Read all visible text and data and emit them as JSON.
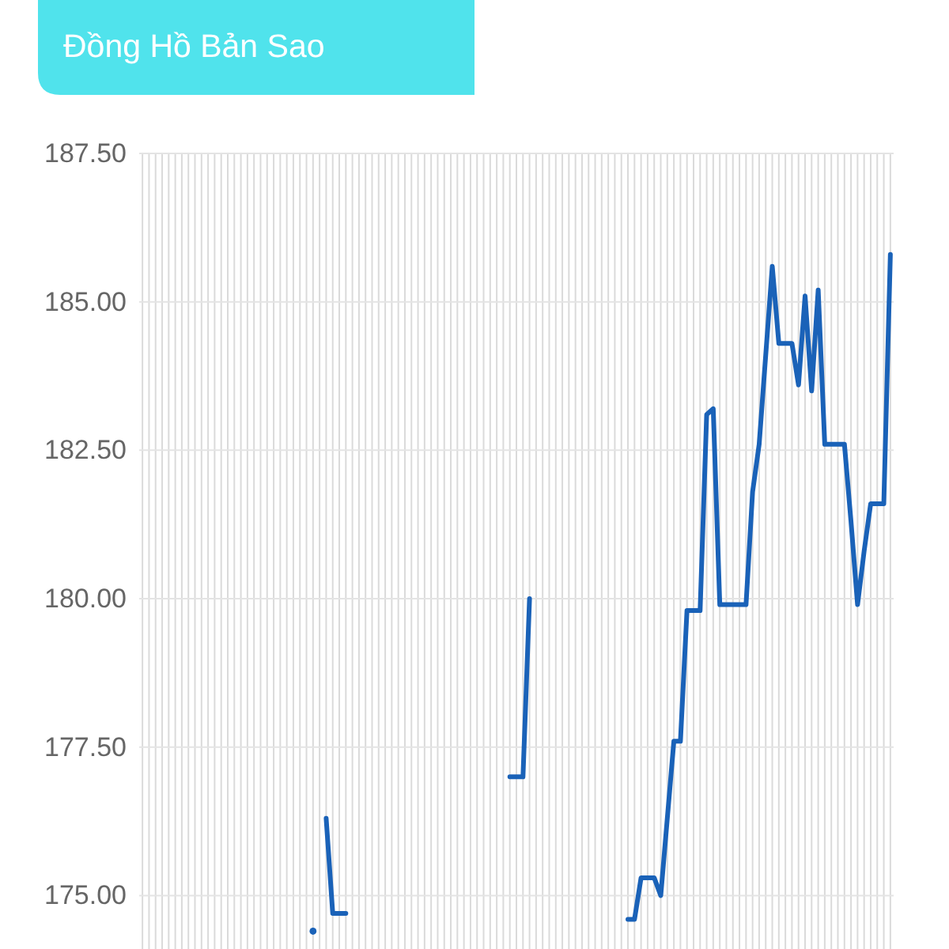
{
  "chart_data": {
    "type": "line",
    "title": "Đồng Hồ Bản Sao",
    "categories": [
      null,
      null,
      null,
      null,
      null,
      null,
      null,
      null,
      null,
      null,
      null,
      null,
      null,
      null,
      null,
      null,
      null,
      null,
      null,
      null,
      null,
      null,
      null,
      null,
      null,
      null,
      null,
      null,
      null,
      null,
      null,
      null,
      null,
      null,
      null,
      null,
      null,
      null,
      null,
      null,
      null,
      null,
      null,
      null,
      null,
      null,
      null,
      null,
      null,
      null,
      null,
      null,
      null,
      null,
      null,
      null,
      null,
      null,
      null,
      null,
      null,
      null,
      null,
      null,
      null,
      null,
      null,
      null,
      null,
      null,
      null,
      null,
      null,
      null,
      null,
      null,
      null,
      null,
      null,
      null,
      null,
      null,
      null,
      null,
      null,
      null,
      null,
      null,
      null,
      null,
      null,
      null,
      null,
      null,
      null,
      null,
      null,
      null,
      null,
      null,
      null,
      null,
      null,
      null,
      null,
      null,
      null,
      null,
      null,
      null,
      null,
      null,
      null,
      null,
      null
    ],
    "values": [
      null,
      null,
      null,
      null,
      null,
      null,
      null,
      null,
      null,
      null,
      null,
      null,
      null,
      null,
      null,
      null,
      null,
      null,
      null,
      null,
      null,
      null,
      null,
      null,
      null,
      null,
      174.4,
      null,
      176.3,
      174.7,
      174.7,
      174.7,
      null,
      null,
      null,
      null,
      null,
      null,
      null,
      null,
      null,
      null,
      null,
      null,
      null,
      null,
      null,
      null,
      null,
      null,
      null,
      null,
      null,
      null,
      null,
      null,
      177,
      177,
      177,
      180,
      null,
      null,
      null,
      null,
      null,
      null,
      null,
      null,
      null,
      null,
      null,
      null,
      null,
      null,
      174.6,
      174.6,
      175.3,
      175.3,
      175.3,
      175,
      176.3,
      177.6,
      177.6,
      179.8,
      179.8,
      179.8,
      183.1,
      183.2,
      179.9,
      179.9,
      179.9,
      179.9,
      179.9,
      181.8,
      182.6,
      184.1,
      185.6,
      184.3,
      184.3,
      184.3,
      183.6,
      185.1,
      183.5,
      185.2,
      182.6,
      182.6,
      182.6,
      182.6,
      181.3,
      179.9,
      180.8,
      181.6,
      181.6,
      181.6,
      185.8
    ],
    "color": "#1a62b8",
    "ylim": [
      174.1,
      187.5
    ],
    "yticks": [
      {
        "value": 175,
        "label": "175.00"
      },
      {
        "value": 177.5,
        "label": "177.50"
      },
      {
        "value": 180,
        "label": "180.00"
      },
      {
        "value": 182.5,
        "label": "182.50"
      },
      {
        "value": 185,
        "label": "185.00"
      },
      {
        "value": 187.5,
        "label": "187.50"
      }
    ],
    "grid": true,
    "tick_labels": "y"
  }
}
